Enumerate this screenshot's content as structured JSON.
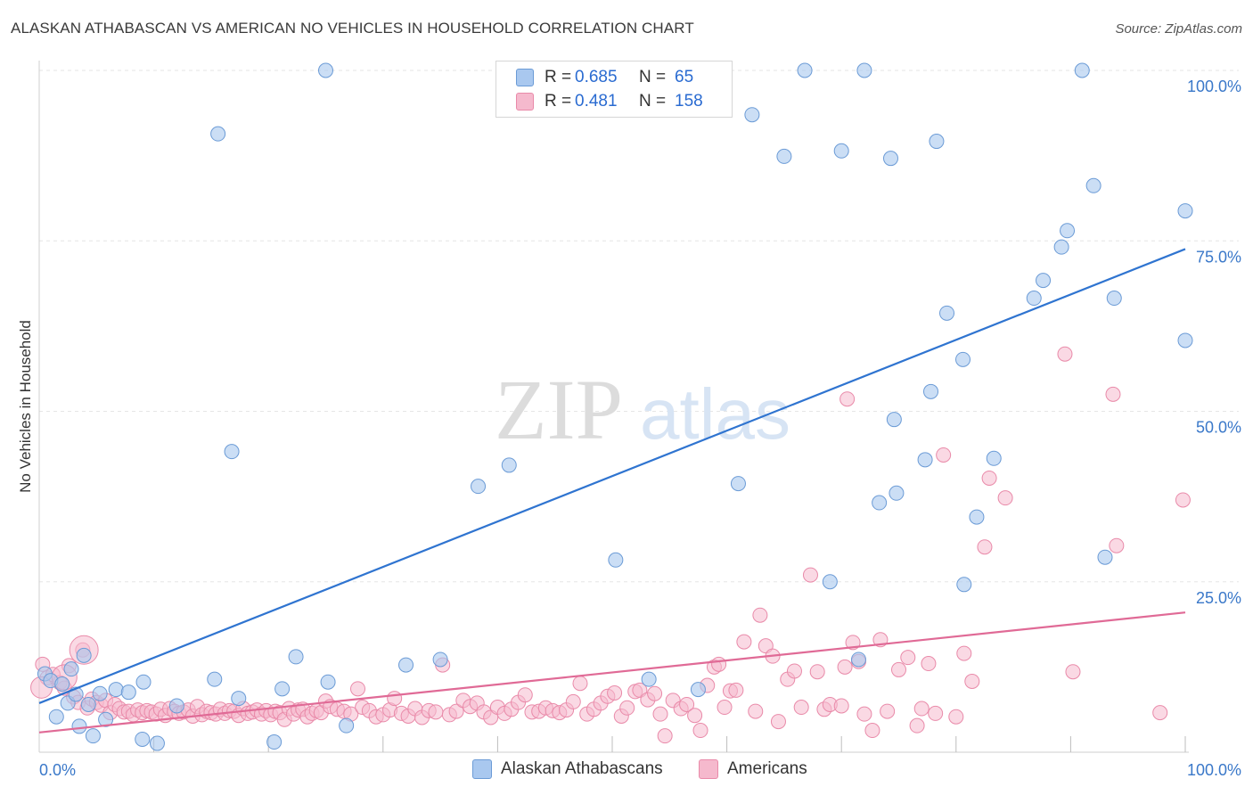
{
  "header": {
    "title": "ALASKAN ATHABASCAN VS AMERICAN NO VEHICLES IN HOUSEHOLD CORRELATION CHART",
    "source": "Source: ZipAtlas.com"
  },
  "legend": {
    "rows": [
      {
        "r_label": "R =",
        "r_value": "0.685",
        "n_label": "N =",
        "n_value": "65"
      },
      {
        "r_label": "R =",
        "r_value": "0.481",
        "n_label": "N =",
        "n_value": "158"
      }
    ]
  },
  "bottom_legend": [
    "Alaskan Athabascans",
    "Americans"
  ],
  "watermark": {
    "zip": "ZIP",
    "atlas": "atlas"
  },
  "colors": {
    "blue_fill": "#a9c8ef",
    "blue_stroke": "#6b9bd6",
    "blue_line": "#2f74d0",
    "pink_fill": "#f5b9cd",
    "pink_stroke": "#e98aa9",
    "pink_line": "#e06a96",
    "grid": "#e6e6e6",
    "tick_label": "#3a78c9"
  },
  "chart_data": {
    "type": "scatter",
    "title": "ALASKAN ATHABASCAN VS AMERICAN NO VEHICLES IN HOUSEHOLD CORRELATION CHART",
    "xlabel": "",
    "ylabel": "No Vehicles in Household",
    "xlim": [
      0,
      100
    ],
    "ylim": [
      0,
      100
    ],
    "x_tick_labels": [
      "0.0%",
      "100.0%"
    ],
    "y_ticks": [
      25,
      50,
      75,
      100
    ],
    "y_tick_labels": [
      "25.0%",
      "50.0%",
      "75.0%",
      "100.0%"
    ],
    "grid": true,
    "legend_position": "top-center",
    "series": [
      {
        "name": "Alaskan Athabascans",
        "color": "#a9c8ef",
        "r": "0.685",
        "n": "65",
        "trend": {
          "x": [
            0,
            100
          ],
          "y": [
            7.2,
            73.8
          ]
        },
        "points": [
          [
            0.5,
            11.5
          ],
          [
            1.0,
            10.5
          ],
          [
            1.5,
            5.2
          ],
          [
            2.0,
            10.0
          ],
          [
            2.5,
            7.2
          ],
          [
            2.8,
            12.2
          ],
          [
            3.2,
            8.5
          ],
          [
            3.5,
            3.8
          ],
          [
            3.9,
            14.2
          ],
          [
            4.3,
            7.0
          ],
          [
            4.7,
            2.4
          ],
          [
            5.3,
            8.6
          ],
          [
            5.8,
            4.8
          ],
          [
            6.7,
            9.2
          ],
          [
            7.8,
            8.8
          ],
          [
            9.0,
            1.9
          ],
          [
            9.1,
            10.3
          ],
          [
            10.3,
            1.3
          ],
          [
            12.0,
            6.8
          ],
          [
            15.3,
            10.7
          ],
          [
            15.6,
            90.7
          ],
          [
            16.8,
            44.1
          ],
          [
            17.4,
            7.9
          ],
          [
            20.5,
            1.5
          ],
          [
            21.2,
            9.3
          ],
          [
            22.4,
            14.0
          ],
          [
            25.0,
            100.0
          ],
          [
            25.2,
            10.3
          ],
          [
            26.8,
            3.9
          ],
          [
            32.0,
            12.8
          ],
          [
            35.0,
            13.6
          ],
          [
            38.3,
            39.0
          ],
          [
            41.0,
            42.1
          ],
          [
            50.3,
            28.2
          ],
          [
            53.2,
            10.7
          ],
          [
            57.5,
            9.2
          ],
          [
            61.0,
            39.4
          ],
          [
            62.2,
            93.5
          ],
          [
            65.0,
            87.4
          ],
          [
            66.8,
            100.0
          ],
          [
            69.0,
            25.0
          ],
          [
            70.0,
            88.2
          ],
          [
            71.5,
            13.6
          ],
          [
            72.0,
            100.0
          ],
          [
            73.3,
            36.6
          ],
          [
            74.3,
            87.1
          ],
          [
            74.6,
            48.8
          ],
          [
            74.8,
            38.0
          ],
          [
            77.3,
            42.9
          ],
          [
            77.8,
            52.9
          ],
          [
            78.3,
            89.6
          ],
          [
            79.2,
            64.4
          ],
          [
            80.6,
            57.6
          ],
          [
            80.7,
            24.6
          ],
          [
            81.8,
            34.5
          ],
          [
            83.3,
            43.1
          ],
          [
            86.8,
            66.6
          ],
          [
            87.6,
            69.2
          ],
          [
            89.2,
            74.1
          ],
          [
            89.7,
            76.5
          ],
          [
            91.0,
            100.0
          ],
          [
            92.0,
            83.1
          ],
          [
            93.0,
            28.6
          ],
          [
            93.8,
            66.6
          ],
          [
            100.0,
            60.4
          ],
          [
            100.0,
            79.4
          ]
        ]
      },
      {
        "name": "Americans",
        "color": "#f5b9cd",
        "r": "0.481",
        "n": "158",
        "trend": {
          "x": [
            0,
            100
          ],
          "y": [
            2.9,
            20.5
          ]
        },
        "points": [
          [
            0.3,
            12.9
          ],
          [
            0.7,
            10.9
          ],
          [
            1.2,
            11.4
          ],
          [
            1.8,
            10.2
          ],
          [
            2.2,
            9.4
          ],
          [
            2.6,
            12.7
          ],
          [
            3.0,
            8.1
          ],
          [
            3.4,
            7.3
          ],
          [
            3.8,
            15.0
          ],
          [
            4.2,
            6.5
          ],
          [
            4.6,
            7.8
          ],
          [
            5.0,
            7.3
          ],
          [
            5.4,
            6.9
          ],
          [
            5.8,
            7.6
          ],
          [
            6.2,
            5.8
          ],
          [
            6.6,
            7.0
          ],
          [
            7.0,
            6.4
          ],
          [
            7.4,
            5.9
          ],
          [
            7.8,
            6.0
          ],
          [
            8.2,
            5.5
          ],
          [
            8.6,
            6.2
          ],
          [
            9.0,
            5.8
          ],
          [
            9.4,
            6.1
          ],
          [
            9.8,
            5.9
          ],
          [
            10.2,
            5.6
          ],
          [
            10.6,
            6.3
          ],
          [
            11.0,
            5.4
          ],
          [
            11.4,
            6.4
          ],
          [
            11.8,
            6.0
          ],
          [
            12.2,
            5.7
          ],
          [
            12.6,
            5.9
          ],
          [
            13.0,
            6.2
          ],
          [
            13.4,
            5.3
          ],
          [
            13.8,
            6.7
          ],
          [
            14.2,
            5.5
          ],
          [
            14.6,
            6.0
          ],
          [
            15.0,
            5.8
          ],
          [
            15.4,
            5.6
          ],
          [
            15.8,
            6.3
          ],
          [
            16.2,
            5.7
          ],
          [
            16.6,
            6.1
          ],
          [
            17.0,
            6.0
          ],
          [
            17.4,
            5.4
          ],
          [
            17.8,
            6.4
          ],
          [
            18.2,
            5.7
          ],
          [
            18.6,
            5.9
          ],
          [
            19.0,
            6.2
          ],
          [
            19.4,
            5.6
          ],
          [
            19.8,
            6.1
          ],
          [
            20.2,
            5.5
          ],
          [
            20.6,
            6.0
          ],
          [
            21.0,
            5.8
          ],
          [
            21.4,
            4.8
          ],
          [
            21.8,
            6.4
          ],
          [
            22.2,
            5.6
          ],
          [
            22.6,
            6.2
          ],
          [
            23.0,
            6.3
          ],
          [
            23.4,
            5.2
          ],
          [
            23.8,
            5.7
          ],
          [
            24.2,
            6.1
          ],
          [
            24.6,
            5.8
          ],
          [
            25.0,
            7.5
          ],
          [
            25.4,
            6.7
          ],
          [
            26.0,
            6.3
          ],
          [
            26.6,
            6.0
          ],
          [
            27.2,
            5.6
          ],
          [
            27.8,
            9.3
          ],
          [
            28.2,
            6.6
          ],
          [
            28.8,
            6.1
          ],
          [
            29.4,
            5.2
          ],
          [
            30.0,
            5.5
          ],
          [
            30.6,
            6.2
          ],
          [
            31.0,
            7.9
          ],
          [
            31.6,
            5.7
          ],
          [
            32.2,
            5.3
          ],
          [
            32.8,
            6.4
          ],
          [
            33.4,
            5.1
          ],
          [
            34.0,
            6.1
          ],
          [
            34.6,
            5.9
          ],
          [
            35.2,
            12.8
          ],
          [
            35.8,
            5.5
          ],
          [
            36.4,
            6.0
          ],
          [
            37.0,
            7.6
          ],
          [
            37.6,
            6.7
          ],
          [
            38.2,
            7.2
          ],
          [
            38.8,
            5.9
          ],
          [
            39.4,
            5.1
          ],
          [
            40.0,
            6.6
          ],
          [
            40.6,
            5.7
          ],
          [
            41.2,
            6.3
          ],
          [
            41.8,
            7.3
          ],
          [
            42.4,
            8.4
          ],
          [
            43.0,
            5.9
          ],
          [
            43.6,
            6.0
          ],
          [
            44.2,
            6.5
          ],
          [
            44.8,
            6.1
          ],
          [
            45.4,
            5.8
          ],
          [
            46.0,
            6.2
          ],
          [
            46.6,
            7.4
          ],
          [
            47.2,
            10.1
          ],
          [
            47.8,
            5.6
          ],
          [
            48.4,
            6.3
          ],
          [
            49.0,
            7.2
          ],
          [
            49.6,
            8.2
          ],
          [
            50.2,
            8.7
          ],
          [
            50.8,
            5.3
          ],
          [
            51.3,
            6.5
          ],
          [
            52.0,
            8.9
          ],
          [
            52.4,
            9.1
          ],
          [
            53.1,
            7.7
          ],
          [
            53.7,
            8.6
          ],
          [
            54.2,
            5.6
          ],
          [
            54.6,
            2.4
          ],
          [
            55.3,
            7.6
          ],
          [
            56.0,
            6.4
          ],
          [
            56.5,
            7.0
          ],
          [
            57.2,
            5.4
          ],
          [
            57.7,
            3.2
          ],
          [
            58.3,
            9.8
          ],
          [
            58.9,
            12.5
          ],
          [
            59.3,
            12.9
          ],
          [
            59.8,
            6.6
          ],
          [
            60.3,
            9.0
          ],
          [
            60.8,
            9.1
          ],
          [
            61.5,
            16.2
          ],
          [
            62.5,
            6.0
          ],
          [
            62.9,
            20.1
          ],
          [
            63.4,
            15.6
          ],
          [
            64.0,
            14.1
          ],
          [
            64.5,
            4.5
          ],
          [
            65.3,
            10.7
          ],
          [
            65.9,
            11.9
          ],
          [
            66.5,
            6.6
          ],
          [
            67.3,
            26.0
          ],
          [
            67.9,
            11.8
          ],
          [
            68.5,
            6.3
          ],
          [
            69.0,
            7.0
          ],
          [
            70.0,
            6.8
          ],
          [
            70.3,
            12.5
          ],
          [
            70.5,
            51.8
          ],
          [
            71.0,
            16.1
          ],
          [
            71.5,
            13.3
          ],
          [
            72.0,
            5.6
          ],
          [
            72.7,
            3.2
          ],
          [
            73.4,
            16.5
          ],
          [
            74.0,
            6.0
          ],
          [
            75.0,
            12.1
          ],
          [
            75.8,
            13.9
          ],
          [
            76.6,
            3.9
          ],
          [
            77.0,
            6.4
          ],
          [
            77.6,
            13.0
          ],
          [
            78.2,
            5.7
          ],
          [
            78.9,
            43.6
          ],
          [
            80.0,
            5.2
          ],
          [
            80.7,
            14.5
          ],
          [
            81.4,
            10.4
          ],
          [
            82.5,
            30.1
          ],
          [
            82.9,
            40.2
          ],
          [
            84.3,
            37.3
          ],
          [
            89.5,
            58.4
          ],
          [
            90.2,
            11.8
          ],
          [
            93.7,
            52.5
          ],
          [
            94.0,
            30.3
          ],
          [
            97.8,
            5.8
          ],
          [
            99.8,
            37.0
          ]
        ],
        "large_points": [
          [
            3.9,
            15.0
          ],
          [
            2.2,
            11.0
          ],
          [
            0.2,
            9.5
          ]
        ]
      }
    ]
  }
}
